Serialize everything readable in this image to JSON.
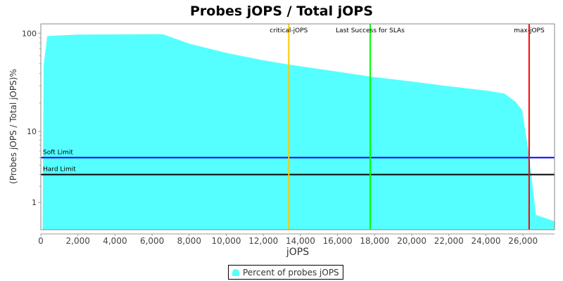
{
  "chart_data": {
    "type": "area",
    "title": "Probes jOPS / Total jOPS",
    "xlabel": "jOPS",
    "ylabel": "(Probes jOPS / Total jOPS)%",
    "y_scale": "log",
    "xlim": [
      0,
      27700
    ],
    "x_ticks": [
      "0",
      "2,000",
      "4,000",
      "6,000",
      "8,000",
      "10,000",
      "12,000",
      "14,000",
      "16,000",
      "18,000",
      "20,000",
      "22,000",
      "24,000",
      "26,000"
    ],
    "x_tick_values": [
      0,
      2000,
      4000,
      6000,
      8000,
      10000,
      12000,
      14000,
      16000,
      18000,
      20000,
      22000,
      24000,
      26000
    ],
    "y_ticks": [
      "100",
      "10",
      "1"
    ],
    "y_tick_values": [
      100,
      10,
      1
    ],
    "grid": false,
    "legend_position": "bottom",
    "series": [
      {
        "name": "Percent of probes jOPS",
        "color": "#55ffff",
        "x": [
          100,
          150,
          350,
          2000,
          6400,
          6600,
          8000,
          10000,
          12000,
          13400,
          16000,
          17760,
          20000,
          22000,
          24000,
          25000,
          25600,
          25950,
          26300,
          26700,
          27700
        ],
        "values": [
          0,
          48,
          94,
          97,
          98,
          97.5,
          79,
          64,
          54,
          49,
          41.7,
          37.2,
          33.2,
          29.7,
          26.9,
          25.1,
          20.6,
          16.9,
          5.8,
          0.43,
          0.2
        ]
      }
    ],
    "vertical_markers": [
      {
        "label": "critical-jOPS",
        "x": 13370,
        "color": "#ffc800"
      },
      {
        "label": "Last Success for SLAs",
        "x": 17760,
        "color": "#00ff00"
      },
      {
        "label": "max-jOPS",
        "x": 26330,
        "color": "#ff0000"
      }
    ],
    "horizontal_markers": [
      {
        "label": "Soft Limit",
        "y": 5,
        "color": "#0000ff"
      },
      {
        "label": "Hard Limit",
        "y": 3,
        "color": "#000000"
      }
    ]
  }
}
